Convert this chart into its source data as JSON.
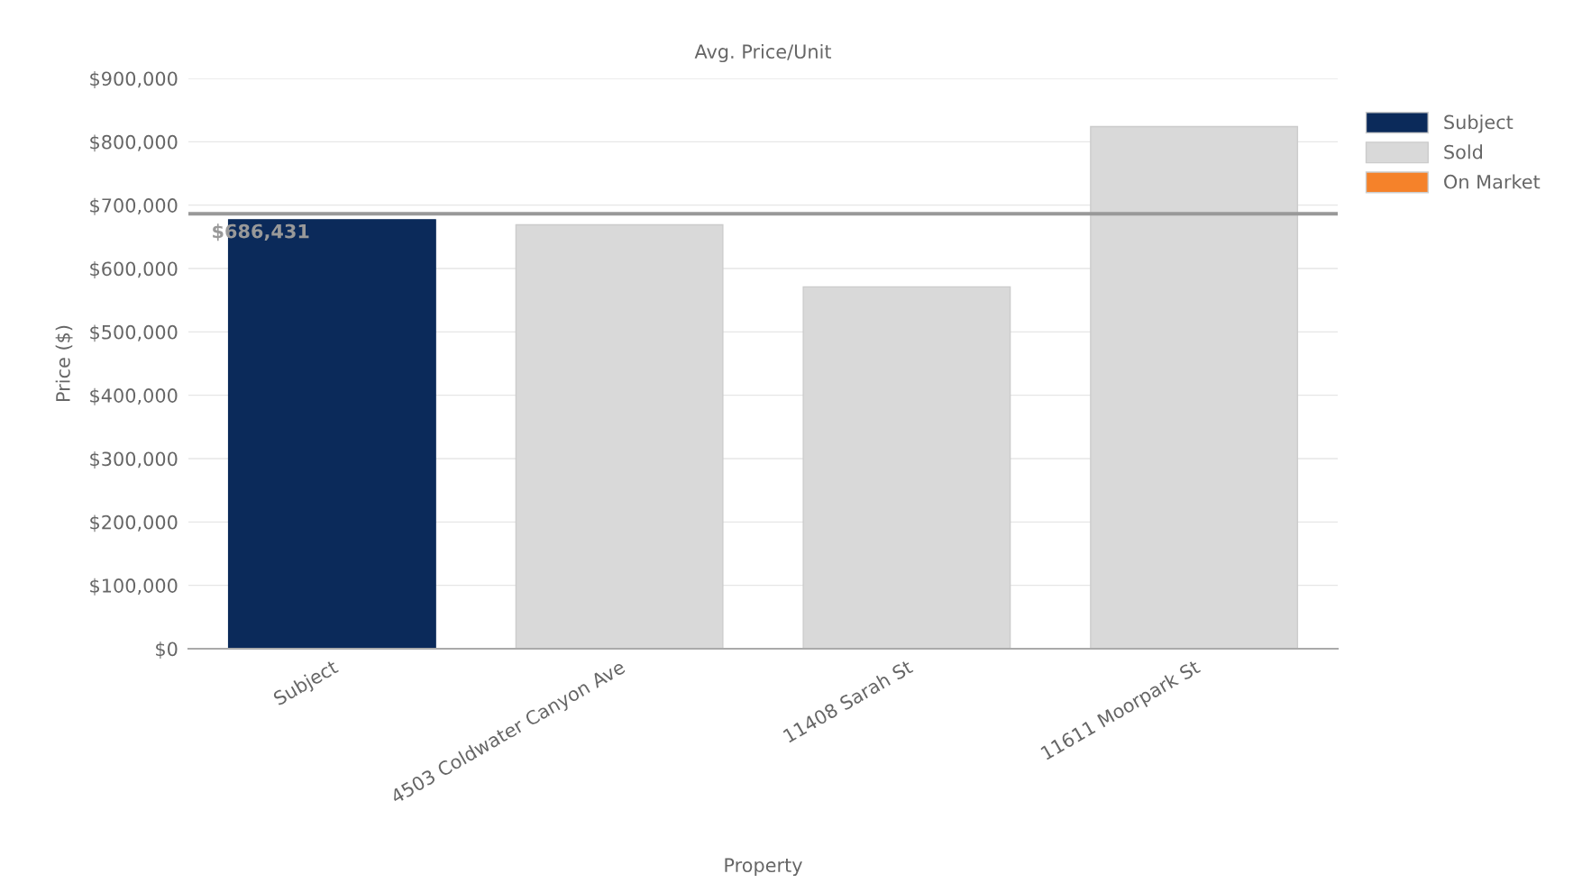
{
  "chart_data": {
    "type": "bar",
    "title": "Avg. Price/Unit",
    "xlabel": "Property",
    "ylabel": "Price ($)",
    "categories": [
      "Subject",
      "4503 Coldwater Canyon Ave",
      "11408 Sarah St",
      "11611 Moorpark St"
    ],
    "stacked": true,
    "series": [
      {
        "name": "Subject",
        "color": "#0b2a5a",
        "values": [
          677000,
          null,
          null,
          null
        ]
      },
      {
        "name": "Sold",
        "color": "#d9d9d9",
        "values": [
          null,
          669000,
          571000,
          824000
        ]
      },
      {
        "name": "On Market",
        "color": "#f5822a",
        "values": [
          null,
          null,
          null,
          null
        ]
      }
    ],
    "ylim": [
      0,
      900000
    ],
    "yticks": [
      {
        "value": 0,
        "label": "$0"
      },
      {
        "value": 100000,
        "label": "$100,000"
      },
      {
        "value": 200000,
        "label": "$200,000"
      },
      {
        "value": 300000,
        "label": "$300,000"
      },
      {
        "value": 400000,
        "label": "$400,000"
      },
      {
        "value": 500000,
        "label": "$500,000"
      },
      {
        "value": 600000,
        "label": "$600,000"
      },
      {
        "value": 700000,
        "label": "$700,000"
      },
      {
        "value": 800000,
        "label": "$800,000"
      },
      {
        "value": 900000,
        "label": "$900,000"
      }
    ],
    "ref_lines": [
      {
        "axis": "y",
        "value": 686431,
        "label": "$686,431",
        "color": "#999999"
      }
    ],
    "grid": "y",
    "legend": "top right"
  }
}
